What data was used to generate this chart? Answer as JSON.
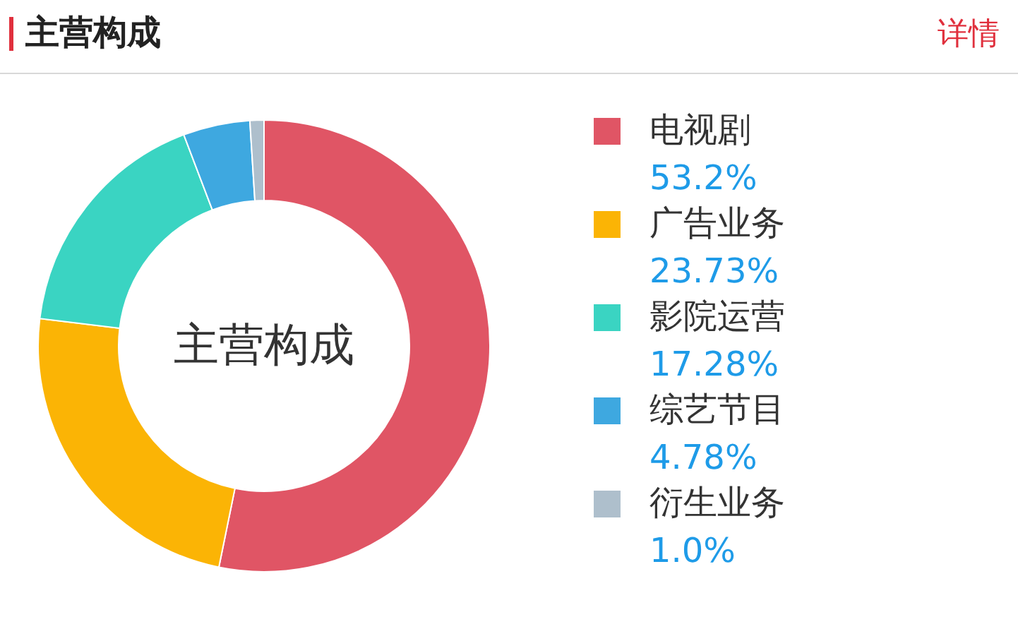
{
  "chart_data": {
    "type": "donut",
    "title": "主营构成",
    "categories": [
      "电视剧",
      "广告业务",
      "影院运营",
      "综艺节目",
      "衍生业务"
    ],
    "values": [
      53.2,
      23.73,
      17.28,
      4.78,
      1.0
    ],
    "value_labels": [
      "53.2%",
      "23.73%",
      "17.28%",
      "4.78%",
      "1.0%"
    ],
    "colors": [
      "#e05565",
      "#fbb405",
      "#3ad4c2",
      "#3ea8e0",
      "#aebfcc"
    ],
    "legend": "right",
    "annotations": [
      "主营构成",
      "详情"
    ]
  }
}
